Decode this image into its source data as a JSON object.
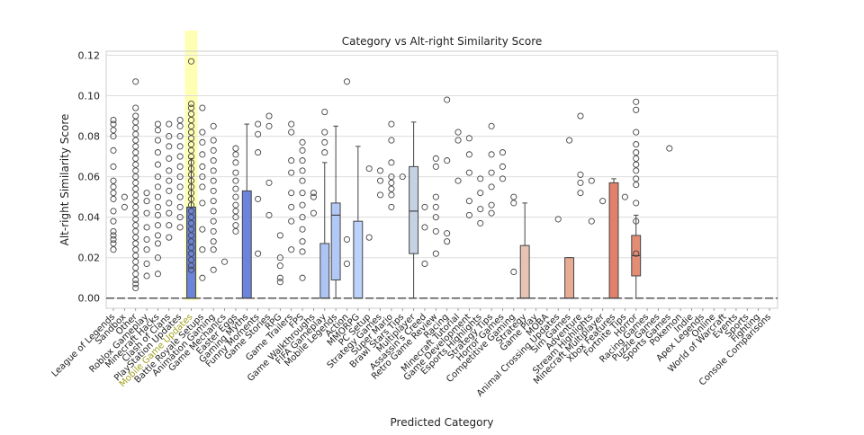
{
  "chart_data": {
    "type": "box",
    "title": "Category vs Alt-right Similarity Score",
    "xlabel": "Predicted Category",
    "ylabel": "Alt-right Similarity Score",
    "ylim": [
      -0.005,
      0.122
    ],
    "yticks": [
      0.0,
      0.02,
      0.04,
      0.06,
      0.08,
      0.1,
      0.12
    ],
    "ytick_labels": [
      "0.00",
      "0.02",
      "0.04",
      "0.06",
      "0.08",
      "0.10",
      "0.12"
    ],
    "grid": true,
    "highlight_category": "Mobile Game Updates",
    "highlight_color": "#ffff99",
    "zero_line_color": "#555555",
    "categories": [
      {
        "name": "League of Legends",
        "color": "#6b84dc",
        "box": null,
        "outliers": [
          0.024,
          0.027,
          0.029,
          0.031,
          0.033,
          0.038,
          0.043,
          0.049,
          0.052,
          0.055,
          0.058,
          0.065,
          0.073,
          0.08,
          0.083,
          0.086,
          0.088
        ]
      },
      {
        "name": "Sandbox",
        "color": "#7089de",
        "box": null,
        "outliers": [
          0.045,
          0.05
        ]
      },
      {
        "name": "Other",
        "color": "#758ee0",
        "box": null,
        "outliers": [
          0.005,
          0.007,
          0.009,
          0.012,
          0.015,
          0.018,
          0.021,
          0.024,
          0.027,
          0.03,
          0.033,
          0.036,
          0.039,
          0.042,
          0.045,
          0.048,
          0.051,
          0.054,
          0.057,
          0.06,
          0.063,
          0.066,
          0.069,
          0.072,
          0.075,
          0.078,
          0.081,
          0.084,
          0.087,
          0.09,
          0.094,
          0.107
        ]
      },
      {
        "name": "Roblox Gameplay",
        "color": "#7a93e2",
        "box": null,
        "outliers": [
          0.011,
          0.017,
          0.024,
          0.029,
          0.035,
          0.042,
          0.048,
          0.052
        ]
      },
      {
        "name": "Minecraft Hacks",
        "color": "#7f98e4",
        "box": null,
        "outliers": [
          0.012,
          0.02,
          0.027,
          0.031,
          0.036,
          0.041,
          0.045,
          0.05,
          0.055,
          0.06,
          0.066,
          0.072,
          0.078,
          0.083,
          0.086
        ]
      },
      {
        "name": "Clash of Clans",
        "color": "#849de6",
        "box": null,
        "outliers": [
          0.03,
          0.036,
          0.042,
          0.047,
          0.053,
          0.058,
          0.063,
          0.069,
          0.075,
          0.08,
          0.086
        ]
      },
      {
        "name": "PlayStation Updates",
        "color": "#89a2e8",
        "box": null,
        "outliers": [
          0.035,
          0.04,
          0.045,
          0.05,
          0.055,
          0.06,
          0.065,
          0.07,
          0.075,
          0.08,
          0.085,
          0.088
        ]
      },
      {
        "name": "Mobile Game Updates",
        "color": "#6b84dc",
        "box": [
          0.0,
          0.0,
          0.0,
          0.045,
          0.069
        ],
        "outliers": [
          0.014,
          0.016,
          0.019,
          0.022,
          0.025,
          0.028,
          0.031,
          0.034,
          0.037,
          0.04,
          0.043,
          0.046,
          0.049,
          0.052,
          0.055,
          0.058,
          0.061,
          0.064,
          0.067,
          0.07,
          0.073,
          0.076,
          0.079,
          0.082,
          0.085,
          0.088,
          0.091,
          0.094,
          0.096,
          0.117
        ]
      },
      {
        "name": "Battle Royale Setups",
        "color": "#7a93e2",
        "box": null,
        "outliers": [
          0.01,
          0.024,
          0.034,
          0.047,
          0.055,
          0.06,
          0.065,
          0.071,
          0.077,
          0.082,
          0.094
        ]
      },
      {
        "name": "Animation Gaming",
        "color": "#7f98e4",
        "box": null,
        "outliers": [
          0.014,
          0.024,
          0.028,
          0.033,
          0.038,
          0.043,
          0.048,
          0.053,
          0.058,
          0.063,
          0.068,
          0.073,
          0.078,
          0.085
        ]
      },
      {
        "name": "Game Mechanics",
        "color": "#849de6",
        "box": null,
        "outliers": [
          0.018
        ]
      },
      {
        "name": "Easter Eggs",
        "color": "#89a2e8",
        "box": null,
        "outliers": [
          0.033,
          0.036,
          0.04,
          0.043,
          0.046,
          0.05,
          0.054,
          0.058,
          0.062,
          0.067,
          0.071,
          0.074
        ]
      },
      {
        "name": "Gaming Myths",
        "color": "#6b84dc",
        "box": [
          0.0,
          0.0,
          0.0,
          0.053,
          0.086
        ],
        "outliers": []
      },
      {
        "name": "Funny Moments",
        "color": "#8fa6e8",
        "box": null,
        "outliers": [
          0.022,
          0.049,
          0.072,
          0.081,
          0.086
        ]
      },
      {
        "name": "Game Stories",
        "color": "#94abea",
        "box": null,
        "outliers": [
          0.041,
          0.057,
          0.085,
          0.09
        ]
      },
      {
        "name": "RPG",
        "color": "#99b0ec",
        "box": null,
        "outliers": [
          0.008,
          0.01,
          0.016,
          0.02,
          0.031
        ]
      },
      {
        "name": "Game Trailers",
        "color": "#9eb5ee",
        "box": null,
        "outliers": [
          0.024,
          0.038,
          0.045,
          0.052,
          0.062,
          0.068,
          0.082,
          0.086
        ]
      },
      {
        "name": "FPS",
        "color": "#a3baf0",
        "box": null,
        "outliers": [
          0.01,
          0.023,
          0.028,
          0.034,
          0.04,
          0.046,
          0.052,
          0.058,
          0.063,
          0.068,
          0.073,
          0.077
        ]
      },
      {
        "name": "Game Walkthroughs",
        "color": "#a8bff2",
        "box": null,
        "outliers": [
          0.042,
          0.05,
          0.052
        ]
      },
      {
        "name": "FIFA Gameplay",
        "color": "#adc4f4",
        "box": [
          0.0,
          0.0,
          0.0,
          0.027,
          0.067
        ],
        "outliers": [
          0.072,
          0.077,
          0.082,
          0.092
        ]
      },
      {
        "name": "Mobile Legends",
        "color": "#b2c9f6",
        "box": [
          0.0,
          0.009,
          0.041,
          0.047,
          0.085
        ],
        "outliers": []
      },
      {
        "name": "Action",
        "color": "#b7cef8",
        "box": null,
        "outliers": [
          0.017,
          0.029,
          0.107
        ]
      },
      {
        "name": "MMORPG",
        "color": "#bcd2fa",
        "box": [
          0.0,
          0.0,
          0.0,
          0.038,
          0.075
        ],
        "outliers": []
      },
      {
        "name": "PC Setup",
        "color": "#c1d5fa",
        "box": null,
        "outliers": [
          0.03,
          0.064
        ]
      },
      {
        "name": "Strategy Games",
        "color": "#c6d8f8",
        "box": null,
        "outliers": [
          0.051,
          0.058,
          0.063
        ]
      },
      {
        "name": "Super Mario",
        "color": "#cbdbf6",
        "box": null,
        "outliers": [
          0.045,
          0.051,
          0.054,
          0.057,
          0.06,
          0.067,
          0.078,
          0.086
        ]
      },
      {
        "name": "Brawl Stars Tips",
        "color": "#d0def4",
        "box": null,
        "outliers": [
          0.06
        ]
      },
      {
        "name": "Multiplayer",
        "color": "#c5d2e4",
        "box": [
          0.0,
          0.022,
          0.043,
          0.065,
          0.087
        ],
        "outliers": []
      },
      {
        "name": "Assassin's Creed",
        "color": "#d5e0f2",
        "box": null,
        "outliers": [
          0.017,
          0.035,
          0.045
        ]
      },
      {
        "name": "Retro Game Review",
        "color": "#dae3ef",
        "box": null,
        "outliers": [
          0.022,
          0.033,
          0.04,
          0.045,
          0.05,
          0.065,
          0.069
        ]
      },
      {
        "name": "Racing",
        "color": "#dfe6ec",
        "box": null,
        "outliers": [
          0.028,
          0.032,
          0.068,
          0.098
        ]
      },
      {
        "name": "Minecraft Tutorial",
        "color": "#e4e8e9",
        "box": null,
        "outliers": [
          0.058,
          0.078,
          0.082
        ]
      },
      {
        "name": "Game Development",
        "color": "#e9e6e3",
        "box": null,
        "outliers": [
          0.041,
          0.048,
          0.062,
          0.071,
          0.079
        ]
      },
      {
        "name": "Esports Highlights",
        "color": "#ede2dc",
        "box": null,
        "outliers": [
          0.037,
          0.044,
          0.052,
          0.059
        ]
      },
      {
        "name": "Strategy Tips",
        "color": "#f0ded5",
        "box": null,
        "outliers": [
          0.042,
          0.046,
          0.055,
          0.062,
          0.071,
          0.085
        ]
      },
      {
        "name": "Horror Games",
        "color": "#f2d9cd",
        "box": null,
        "outliers": [
          0.059,
          0.065,
          0.072
        ]
      },
      {
        "name": "Competitive Gaming",
        "color": "#f3d4c5",
        "box": null,
        "outliers": [
          0.013,
          0.047,
          0.05
        ]
      },
      {
        "name": "Strategy",
        "color": "#e6c3b3",
        "box": [
          0.0,
          0.0,
          0.0,
          0.026,
          0.047
        ],
        "outliers": []
      },
      {
        "name": "Game Play",
        "color": "#f4cebd",
        "box": null,
        "outliers": []
      },
      {
        "name": "MOBA",
        "color": "#f4c8b5",
        "box": null,
        "outliers": []
      },
      {
        "name": "Animal Crossing Updates",
        "color": "#f3c2ac",
        "box": null,
        "outliers": [
          0.039
        ]
      },
      {
        "name": "Sim Games",
        "color": "#e8ab94",
        "box": [
          0.0,
          0.0,
          0.0,
          0.02,
          0.02
        ],
        "outliers": [
          0.078
        ]
      },
      {
        "name": "Adventure",
        "color": "#f1bca4",
        "box": null,
        "outliers": [
          0.052,
          0.057,
          0.061,
          0.09
        ]
      },
      {
        "name": "Stream Highlights",
        "color": "#efb59c",
        "box": null,
        "outliers": [
          0.038,
          0.058
        ]
      },
      {
        "name": "Minecraft Multiplayer",
        "color": "#ecae94",
        "box": null,
        "outliers": [
          0.048
        ]
      },
      {
        "name": "Xbox Features",
        "color": "#e2806a",
        "box": [
          0.0,
          0.0,
          0.0,
          0.057,
          0.059
        ],
        "outliers": []
      },
      {
        "name": "Fortnite Tips",
        "color": "#e8a68b",
        "box": null,
        "outliers": [
          0.05
        ]
      },
      {
        "name": "Horror",
        "color": "#e38d74",
        "box": [
          0.0,
          0.011,
          0.021,
          0.031,
          0.041
        ],
        "outliers": [
          0.022,
          0.038,
          0.047,
          0.056,
          0.059,
          0.063,
          0.066,
          0.069,
          0.072,
          0.076,
          0.082,
          0.093,
          0.097
        ]
      },
      {
        "name": "Racing Games",
        "color": "#e49f83",
        "box": null,
        "outliers": []
      },
      {
        "name": "Puzzle Games",
        "color": "#e0977c",
        "box": null,
        "outliers": []
      },
      {
        "name": "Sports Games",
        "color": "#dc8f75",
        "box": null,
        "outliers": [
          0.074
        ]
      },
      {
        "name": "Pokemon",
        "color": "#d8876e",
        "box": null,
        "outliers": []
      },
      {
        "name": "Indie",
        "color": "#d47f67",
        "box": null,
        "outliers": []
      },
      {
        "name": "Apex Legends",
        "color": "#d07760",
        "box": null,
        "outliers": []
      },
      {
        "name": "Online",
        "color": "#cc6f59",
        "box": null,
        "outliers": []
      },
      {
        "name": "World of Warcraft",
        "color": "#c86752",
        "box": null,
        "outliers": []
      },
      {
        "name": "Events",
        "color": "#c45f4b",
        "box": null,
        "outliers": []
      },
      {
        "name": "Sports",
        "color": "#c05744",
        "box": null,
        "outliers": []
      },
      {
        "name": "Fighting",
        "color": "#bc4f3d",
        "box": null,
        "outliers": []
      },
      {
        "name": "Console Comparisons",
        "color": "#b84736",
        "box": null,
        "outliers": []
      }
    ]
  }
}
